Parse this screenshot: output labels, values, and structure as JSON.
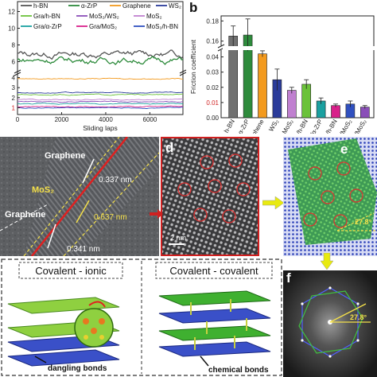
{
  "panels": {
    "b": "b",
    "d": "d",
    "e": "e",
    "f": "f"
  },
  "chart_data": [
    {
      "type": "line",
      "xlabel": "Sliding laps",
      "xlim": [
        0,
        7500
      ],
      "x_ticks": [
        "0",
        "2000",
        "4000",
        "6000"
      ],
      "y_ticks": [
        "1",
        "2",
        "3",
        "4",
        "6",
        "8",
        "10",
        "12"
      ],
      "series": [
        {
          "name": "h-BN",
          "color": "#555555",
          "level": 6.9
        },
        {
          "name": "α-ZrP",
          "color": "#2e8b3c",
          "level": 6.2
        },
        {
          "name": "Graphene",
          "color": "#f39a1e",
          "level": 3.9
        },
        {
          "name": "WS₂",
          "color": "#2a3b9a",
          "level": 2.5
        },
        {
          "name": "Gra/h-BN",
          "color": "#6bc23a",
          "level": 2.3
        },
        {
          "name": "MoS₂/WS₂",
          "color": "#8a4fb8",
          "level": 1.6
        },
        {
          "name": "MoS₂",
          "color": "#c080d0",
          "level": 1.8
        },
        {
          "name": "Gra/α-ZrP",
          "color": "#1aa0a0",
          "level": 1.4
        },
        {
          "name": "Gra/MoS₂",
          "color": "#d8208a",
          "level": 1.1
        },
        {
          "name": "MoS₂/h-BN",
          "color": "#3050c0",
          "level": 1.0
        }
      ]
    },
    {
      "type": "bar",
      "ylabel": "Friction coefficient",
      "y_ticks": [
        "0.00",
        "0.01",
        "0.02",
        "0.03",
        "0.04",
        "0.16",
        "0.18"
      ],
      "categories": [
        "h-BN",
        "α-ZrP",
        "Graphene",
        "WS₂",
        "MoS₂",
        "Gra/h-BN",
        "Gra/α-ZrP",
        "MoS₂/h-BN",
        "WS₂/MoS₂",
        "Gra/MoS₂"
      ],
      "values": [
        0.165,
        0.166,
        0.042,
        0.025,
        0.018,
        0.022,
        0.011,
        0.008,
        0.009,
        0.007
      ],
      "errors": [
        0.01,
        0.016,
        0.002,
        0.007,
        0.002,
        0.003,
        0.002,
        0.001,
        0.002,
        0.001
      ],
      "colors": [
        "#707070",
        "#2e8b3c",
        "#f39a1e",
        "#2a3b9a",
        "#c080d0",
        "#6bc23a",
        "#1aa0a0",
        "#d8208a",
        "#3050c0",
        "#8a4fb8"
      ]
    }
  ],
  "tem_c": {
    "graphene_top": "Graphene",
    "mos2": "MoS₂",
    "graphene_bottom": "Graphene",
    "d1": "0.337 nm",
    "d2": "0.637 nm",
    "d3": "0.341 nm"
  },
  "tem_d": {
    "scale": "2 nm"
  },
  "panel_e": {
    "angle": "27.8°"
  },
  "panel_f": {
    "angle": "27.8°"
  },
  "bottom": {
    "left_title": "Covalent - ionic",
    "right_title": "Covalent - covalent",
    "left_note": "dangling bonds",
    "right_note": "chemical bonds"
  }
}
